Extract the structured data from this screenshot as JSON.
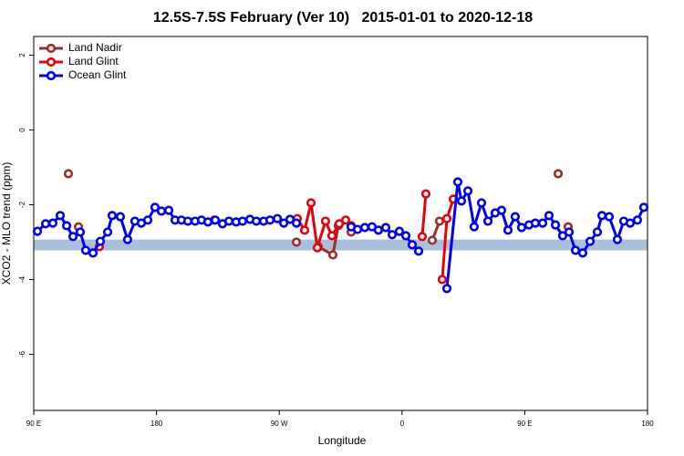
{
  "chart_data": {
    "type": "line",
    "title": "12.5S-7.5S February (Ver 10)   2015-01-01 to 2020-12-18",
    "xlabel": "Longitude",
    "ylabel": "XCO2 - MLO trend (ppm)",
    "xlim": [
      90,
      540
    ],
    "ylim": [
      -7.5,
      2.5
    ],
    "xticks": [
      {
        "value": 90,
        "label": "90 E"
      },
      180,
      {
        "value": 270,
        "label": "90 W"
      },
      {
        "value": 360,
        "label": "0"
      },
      {
        "value": 450,
        "label": "90 E"
      },
      {
        "value": 540,
        "label": "180"
      }
    ],
    "yticks": [
      -6,
      -4,
      -2,
      0,
      2
    ],
    "legend": "top-left",
    "band": {
      "ymin": -3.22,
      "ymax": -2.93,
      "color": "#a9bfdc"
    },
    "series": [
      {
        "name": "Land Nadir",
        "color": "#9b2d2d",
        "x": [
          115.4,
          119,
          122.8,
          200,
          282.6,
          290,
          298.6,
          309.3,
          313.3,
          318,
          322.7,
          350,
          382.2,
          387.5,
          430,
          474.5,
          478,
          481.8
        ],
        "values": [
          -1.17,
          null,
          -2.59,
          null,
          -3.0,
          null,
          -3.12,
          -3.34,
          -2.56,
          null,
          -2.73,
          null,
          -2.95,
          -2.44,
          null,
          -1.17,
          null,
          -2.59
        ]
      },
      {
        "name": "Land Glint",
        "color": "#e8000b",
        "x": [
          138.1,
          180,
          222.4,
          250,
          283.2,
          288.6,
          293.3,
          297.9,
          303.9,
          308.6,
          314,
          318.7,
          322.7,
          350,
          374.8,
          377.5,
          385,
          389.5,
          392.9,
          397.6
        ],
        "values": [
          -3.12,
          null,
          -2.41,
          null,
          -2.37,
          -2.68,
          -1.95,
          -3.15,
          -2.44,
          -2.83,
          -2.51,
          -2.41,
          -2.56,
          null,
          -2.85,
          -1.71,
          null,
          -4.0,
          -2.37,
          -1.85
        ]
      },
      {
        "name": "Ocean Glint",
        "color": "#0000ee",
        "x": [
          92.7,
          98.7,
          104,
          109.4,
          114.1,
          118.8,
          124.1,
          128.1,
          133.5,
          138.8,
          144.2,
          147.5,
          153.5,
          158.8,
          164.2,
          168.9,
          173.6,
          178.9,
          183.6,
          189,
          193.6,
          198.3,
          203,
          208.3,
          213,
          217.7,
          223.1,
          228.4,
          233.1,
          238.4,
          243.1,
          248.5,
          253.2,
          258.5,
          263.2,
          268.6,
          273.3,
          277.9,
          282.6,
          302,
          322.7,
          327.4,
          332.7,
          338,
          342.7,
          348.1,
          352.8,
          358.1,
          362.8,
          367.5,
          372.2,
          382,
          392.9,
          400.9,
          403.6,
          408.3,
          412.9,
          418.3,
          423,
          428.3,
          433,
          437.7,
          443,
          447.7,
          453.1,
          457.7,
          463.1,
          467.8,
          472.5,
          477.8,
          482.5,
          487.2,
          492.5,
          497.9,
          503.2,
          506.6,
          511.9,
          517.9,
          522.6,
          527.3,
          532.6,
          537.3
        ],
        "values": [
          -2.71,
          -2.51,
          -2.49,
          -2.29,
          -2.56,
          -2.85,
          -2.73,
          -3.22,
          -3.29,
          -2.98,
          -2.73,
          -2.29,
          -2.32,
          -2.93,
          -2.44,
          -2.49,
          -2.41,
          -2.07,
          -2.17,
          -2.15,
          -2.41,
          -2.41,
          -2.44,
          -2.44,
          -2.41,
          -2.46,
          -2.41,
          -2.51,
          -2.44,
          -2.46,
          -2.44,
          -2.39,
          -2.44,
          -2.44,
          -2.41,
          -2.37,
          -2.49,
          -2.39,
          -2.49,
          null,
          -2.59,
          -2.66,
          -2.61,
          -2.59,
          -2.68,
          -2.61,
          -2.8,
          -2.71,
          -2.83,
          -3.07,
          -3.24,
          null,
          -4.24,
          -1.39,
          -1.9,
          -1.63,
          -2.59,
          -1.95,
          -2.44,
          -2.22,
          -2.15,
          -2.68,
          -2.32,
          -2.61,
          -2.54,
          -2.49,
          -2.49,
          -2.29,
          -2.54,
          -2.83,
          -2.73,
          -3.22,
          -3.29,
          -2.98,
          -2.73,
          -2.29,
          -2.32,
          -2.93,
          -2.44,
          -2.49,
          -2.41,
          -2.07
        ]
      }
    ]
  }
}
